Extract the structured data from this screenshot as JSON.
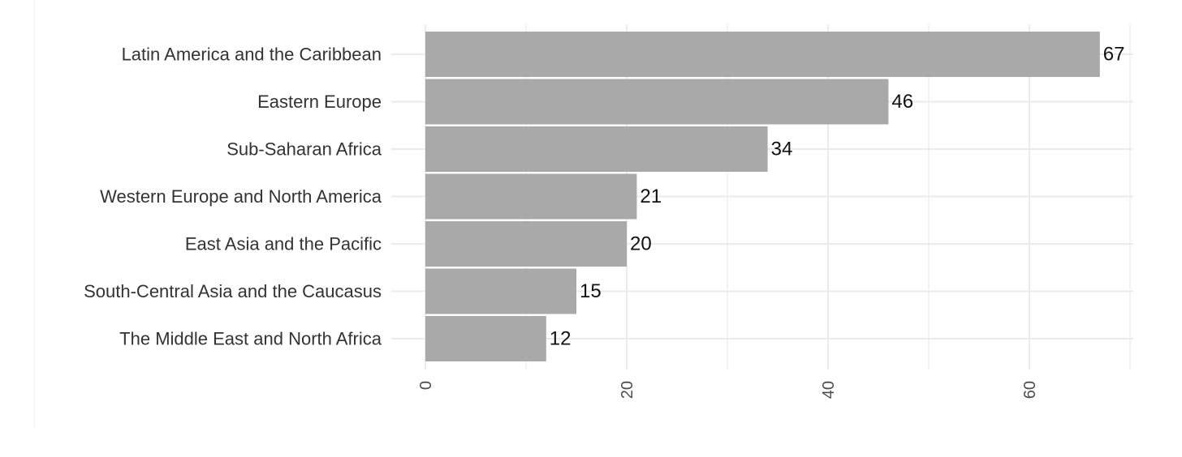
{
  "chart_data": {
    "type": "bar",
    "orientation": "horizontal",
    "categories": [
      "Latin America and the Caribbean",
      "Eastern Europe",
      "Sub-Saharan Africa",
      "Western Europe and North America",
      "East Asia and the Pacific",
      "South-Central Asia and the Caucasus",
      "The Middle East and North Africa"
    ],
    "values": [
      67,
      46,
      34,
      21,
      20,
      15,
      12
    ],
    "value_labels": [
      "67",
      "46",
      "34",
      "21",
      "20",
      "15",
      "12"
    ],
    "x_ticks": [
      0,
      20,
      40,
      60
    ],
    "x_tick_labels": [
      "0",
      "20",
      "40",
      "60"
    ],
    "xlim": [
      0,
      70
    ],
    "title": "",
    "xlabel": "",
    "ylabel": "",
    "grid": true,
    "legend": "none",
    "colors": {
      "bar": "#a9a9a9",
      "grid": "#ebebeb",
      "value_text": "#111111",
      "label_text": "#333333",
      "tick_text": "#4d4d4d"
    }
  }
}
